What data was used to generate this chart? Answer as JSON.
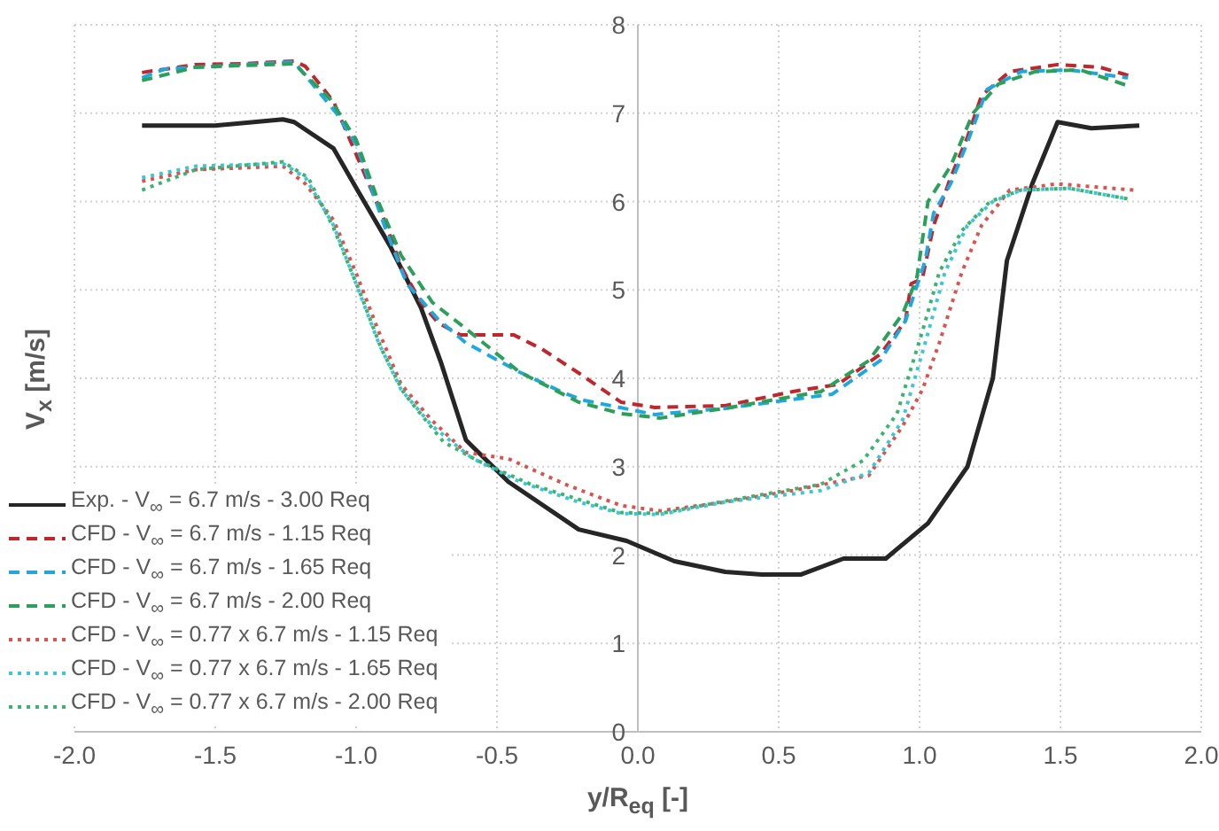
{
  "chart_data": {
    "type": "line",
    "xlabel": "y/R$_{eq}$ [-]",
    "ylabel": "V$_{x}$ [m/s]",
    "xlim": [
      -2,
      2
    ],
    "xticks": [
      {
        "value": -2,
        "label": "-2.0"
      },
      {
        "value": -1.5,
        "label": "-1.5"
      },
      {
        "value": -1,
        "label": "-1.0"
      },
      {
        "value": -0.5,
        "label": "-0.5"
      },
      {
        "value": 0,
        "label": "0.0"
      },
      {
        "value": 0.5,
        "label": "0.5"
      },
      {
        "value": 1,
        "label": "1.0"
      },
      {
        "value": 1.5,
        "label": "1.5"
      },
      {
        "value": 2,
        "label": "2.0"
      }
    ],
    "ylim": [
      0,
      8
    ],
    "yticks": [
      0,
      1,
      2,
      3,
      4,
      5,
      6,
      7,
      8
    ],
    "grid": true,
    "legend": "bottom left",
    "marker": "none",
    "series": [
      {
        "name": "Exp. - V$_{∞}$ = 6.7 m/s - 3.00 Req",
        "color": "#262626",
        "line_style": "solid",
        "x": [
          -1.76,
          -1.5,
          -1.26,
          -1.22,
          -1.08,
          -0.99,
          -0.88,
          -0.77,
          -0.7,
          -0.61,
          -0.46,
          -0.21,
          -0.04,
          0.13,
          0.31,
          0.44,
          0.58,
          0.73,
          0.88,
          1.03,
          1.17,
          1.26,
          1.31,
          1.4,
          1.49,
          1.61,
          1.78
        ],
        "values": [
          6.86,
          6.86,
          6.93,
          6.9,
          6.6,
          6.1,
          5.5,
          4.8,
          4.19,
          3.3,
          2.83,
          2.29,
          2.16,
          1.93,
          1.81,
          1.78,
          1.78,
          1.96,
          1.96,
          2.36,
          3.0,
          4.0,
          5.33,
          6.2,
          6.9,
          6.83,
          6.86
        ]
      },
      {
        "name": "CFD - V$_{∞}$ = 6.7 m/s - 1.15 Req",
        "color": "#c0272d",
        "line_style": "dashed",
        "x": [
          -1.76,
          -1.57,
          -1.4,
          -1.22,
          -1.18,
          -1.08,
          -0.99,
          -0.9,
          -0.84,
          -0.77,
          -0.71,
          -0.63,
          -0.44,
          -0.34,
          -0.21,
          -0.06,
          0.06,
          0.31,
          0.55,
          0.71,
          0.86,
          0.95,
          0.97,
          1.01,
          1.05,
          1.11,
          1.17,
          1.22,
          1.32,
          1.49,
          1.64,
          1.76
        ],
        "values": [
          7.46,
          7.55,
          7.56,
          7.59,
          7.53,
          7.13,
          6.46,
          5.79,
          5.26,
          4.86,
          4.63,
          4.49,
          4.49,
          4.33,
          4.06,
          3.73,
          3.67,
          3.69,
          3.85,
          3.93,
          4.27,
          4.65,
          5.07,
          5.13,
          5.73,
          6.27,
          6.73,
          7.2,
          7.47,
          7.55,
          7.52,
          7.41
        ]
      },
      {
        "name": "CFD - V$_{∞}$ = 6.7 m/s - 1.65 Req",
        "color": "#1fa8e0",
        "line_style": "dashed",
        "x": [
          -1.76,
          -1.68,
          -1.22,
          -1.07,
          -1.0,
          -0.9,
          -0.82,
          -0.71,
          -0.61,
          -0.42,
          -0.26,
          -0.19,
          0.06,
          0.31,
          0.69,
          0.86,
          0.95,
          1.02,
          1.05,
          1.11,
          1.17,
          1.24,
          1.36,
          1.53,
          1.74
        ],
        "values": [
          7.4,
          7.5,
          7.58,
          7.0,
          6.65,
          5.73,
          5.07,
          4.67,
          4.4,
          4.07,
          3.83,
          3.75,
          3.59,
          3.66,
          3.82,
          4.2,
          4.65,
          5.33,
          5.87,
          6.2,
          6.67,
          7.27,
          7.47,
          7.49,
          7.4
        ]
      },
      {
        "name": "CFD - V$_{∞}$ = 6.7 m/s - 2.00 Req",
        "color": "#2ca05a",
        "line_style": "dashed",
        "x": [
          -1.76,
          -1.57,
          -1.22,
          -1.09,
          -1.0,
          -0.92,
          -0.84,
          -0.73,
          -0.61,
          -0.42,
          -0.21,
          -0.06,
          0.08,
          0.31,
          0.65,
          0.82,
          0.94,
          0.99,
          1.03,
          1.11,
          1.19,
          1.28,
          1.41,
          1.57,
          1.74
        ],
        "values": [
          7.37,
          7.52,
          7.56,
          7.15,
          6.7,
          5.99,
          5.39,
          4.86,
          4.56,
          4.07,
          3.73,
          3.6,
          3.55,
          3.66,
          3.85,
          4.2,
          4.73,
          5.13,
          6.0,
          6.4,
          7.0,
          7.33,
          7.47,
          7.49,
          7.31
        ]
      },
      {
        "name": "CFD - V$_{∞}$ = 0.77 x 6.7 m/s - 1.15 Req",
        "color": "#d9534f",
        "line_style": "dotted",
        "x": [
          -1.76,
          -1.57,
          -1.26,
          -1.18,
          -1.08,
          -1.0,
          -0.92,
          -0.84,
          -0.73,
          -0.61,
          -0.46,
          -0.25,
          -0.06,
          0.08,
          0.31,
          0.55,
          0.82,
          0.94,
          1.01,
          1.07,
          1.15,
          1.22,
          1.32,
          1.49,
          1.76
        ],
        "values": [
          6.23,
          6.36,
          6.4,
          6.2,
          5.79,
          5.19,
          4.53,
          3.93,
          3.52,
          3.16,
          3.09,
          2.79,
          2.56,
          2.5,
          2.6,
          2.73,
          2.9,
          3.46,
          3.87,
          4.4,
          5.2,
          5.73,
          6.13,
          6.2,
          6.13
        ]
      },
      {
        "name": "CFD - V$_{∞}$ = 0.77 x 6.7 m/s - 1.65 Req",
        "color": "#3cc6d6",
        "line_style": "dotted",
        "x": [
          -1.76,
          -1.57,
          -1.26,
          -1.18,
          -1.08,
          -1.0,
          -0.92,
          -0.84,
          -0.73,
          -0.59,
          -0.42,
          -0.21,
          -0.06,
          0.08,
          0.31,
          0.65,
          0.82,
          0.94,
          1.02,
          1.09,
          1.17,
          1.26,
          1.36,
          1.53,
          1.74
        ],
        "values": [
          6.27,
          6.4,
          6.43,
          6.27,
          5.73,
          5.07,
          4.4,
          3.87,
          3.46,
          3.1,
          2.83,
          2.6,
          2.47,
          2.46,
          2.6,
          2.73,
          2.93,
          3.53,
          4.4,
          5.2,
          5.73,
          6.0,
          6.13,
          6.15,
          6.03
        ]
      },
      {
        "name": "CFD - V$_{∞}$ = 0.77 x 6.7 m/s - 2.00 Req",
        "color": "#3cb371",
        "line_style": "dotted",
        "x": [
          -1.76,
          -1.57,
          -1.26,
          -1.17,
          -1.08,
          -0.99,
          -0.91,
          -0.83,
          -0.69,
          -0.57,
          -0.38,
          -0.21,
          -0.06,
          0.08,
          0.31,
          0.65,
          0.8,
          0.92,
          1.01,
          1.07,
          1.15,
          1.25,
          1.36,
          1.53,
          1.74
        ],
        "values": [
          6.13,
          6.36,
          6.45,
          6.27,
          5.7,
          5.0,
          4.33,
          3.83,
          3.28,
          3.07,
          2.8,
          2.63,
          2.48,
          2.47,
          2.61,
          2.8,
          3.07,
          3.6,
          4.53,
          5.2,
          5.67,
          6.0,
          6.13,
          6.15,
          6.03
        ]
      }
    ]
  }
}
